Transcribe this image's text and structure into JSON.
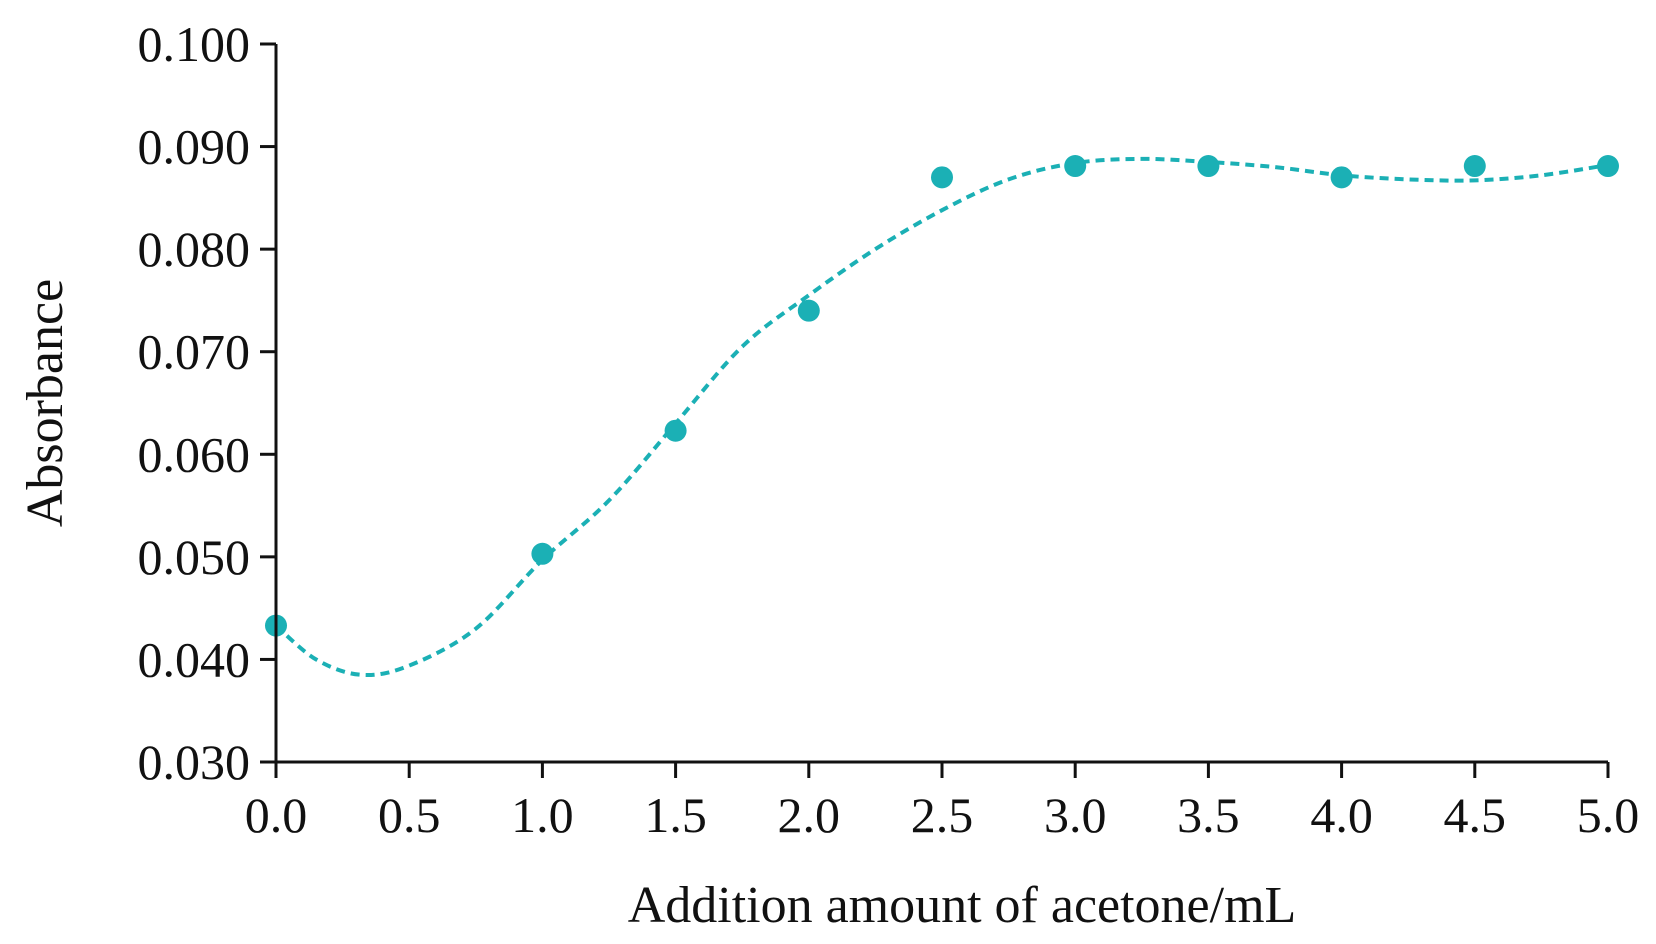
{
  "chart_data": {
    "type": "scatter",
    "title": "",
    "xlabel": "Addition amount of acetone/mL",
    "ylabel": "Absorbance",
    "xlim": [
      0.0,
      5.0
    ],
    "ylim": [
      0.03,
      0.1
    ],
    "x_ticks": [
      "0.0",
      "0.5",
      "1.0",
      "1.5",
      "2.0",
      "2.5",
      "3.0",
      "3.5",
      "4.0",
      "4.5",
      "5.0"
    ],
    "y_ticks": [
      "0.030",
      "0.040",
      "0.050",
      "0.060",
      "0.070",
      "0.080",
      "0.090",
      "0.100"
    ],
    "grid": false,
    "legend": "none",
    "colors": {
      "series": "#1BB0B5",
      "axis": "#111111"
    },
    "series": [
      {
        "points": [
          {
            "x": 0.0,
            "y": 0.0433
          },
          {
            "x": 1.0,
            "y": 0.0503
          },
          {
            "x": 1.5,
            "y": 0.0623
          },
          {
            "x": 2.0,
            "y": 0.074
          },
          {
            "x": 2.5,
            "y": 0.087
          },
          {
            "x": 3.0,
            "y": 0.0881
          },
          {
            "x": 3.5,
            "y": 0.0881
          },
          {
            "x": 4.0,
            "y": 0.087
          },
          {
            "x": 4.5,
            "y": 0.0881
          },
          {
            "x": 5.0,
            "y": 0.0881
          }
        ],
        "trendline": [
          {
            "x": 0.0,
            "y": 0.0433
          },
          {
            "x": 0.15,
            "y": 0.04
          },
          {
            "x": 0.32,
            "y": 0.0385
          },
          {
            "x": 0.5,
            "y": 0.0394
          },
          {
            "x": 0.75,
            "y": 0.043
          },
          {
            "x": 1.0,
            "y": 0.0497
          },
          {
            "x": 1.25,
            "y": 0.0555
          },
          {
            "x": 1.5,
            "y": 0.063
          },
          {
            "x": 1.75,
            "y": 0.0705
          },
          {
            "x": 2.0,
            "y": 0.0755
          },
          {
            "x": 2.25,
            "y": 0.08
          },
          {
            "x": 2.5,
            "y": 0.0838
          },
          {
            "x": 2.75,
            "y": 0.0868
          },
          {
            "x": 3.0,
            "y": 0.0884
          },
          {
            "x": 3.25,
            "y": 0.0888
          },
          {
            "x": 3.5,
            "y": 0.0885
          },
          {
            "x": 3.75,
            "y": 0.088
          },
          {
            "x": 4.0,
            "y": 0.0872
          },
          {
            "x": 4.25,
            "y": 0.0868
          },
          {
            "x": 4.5,
            "y": 0.0867
          },
          {
            "x": 4.75,
            "y": 0.0872
          },
          {
            "x": 5.0,
            "y": 0.0882
          }
        ]
      }
    ]
  }
}
